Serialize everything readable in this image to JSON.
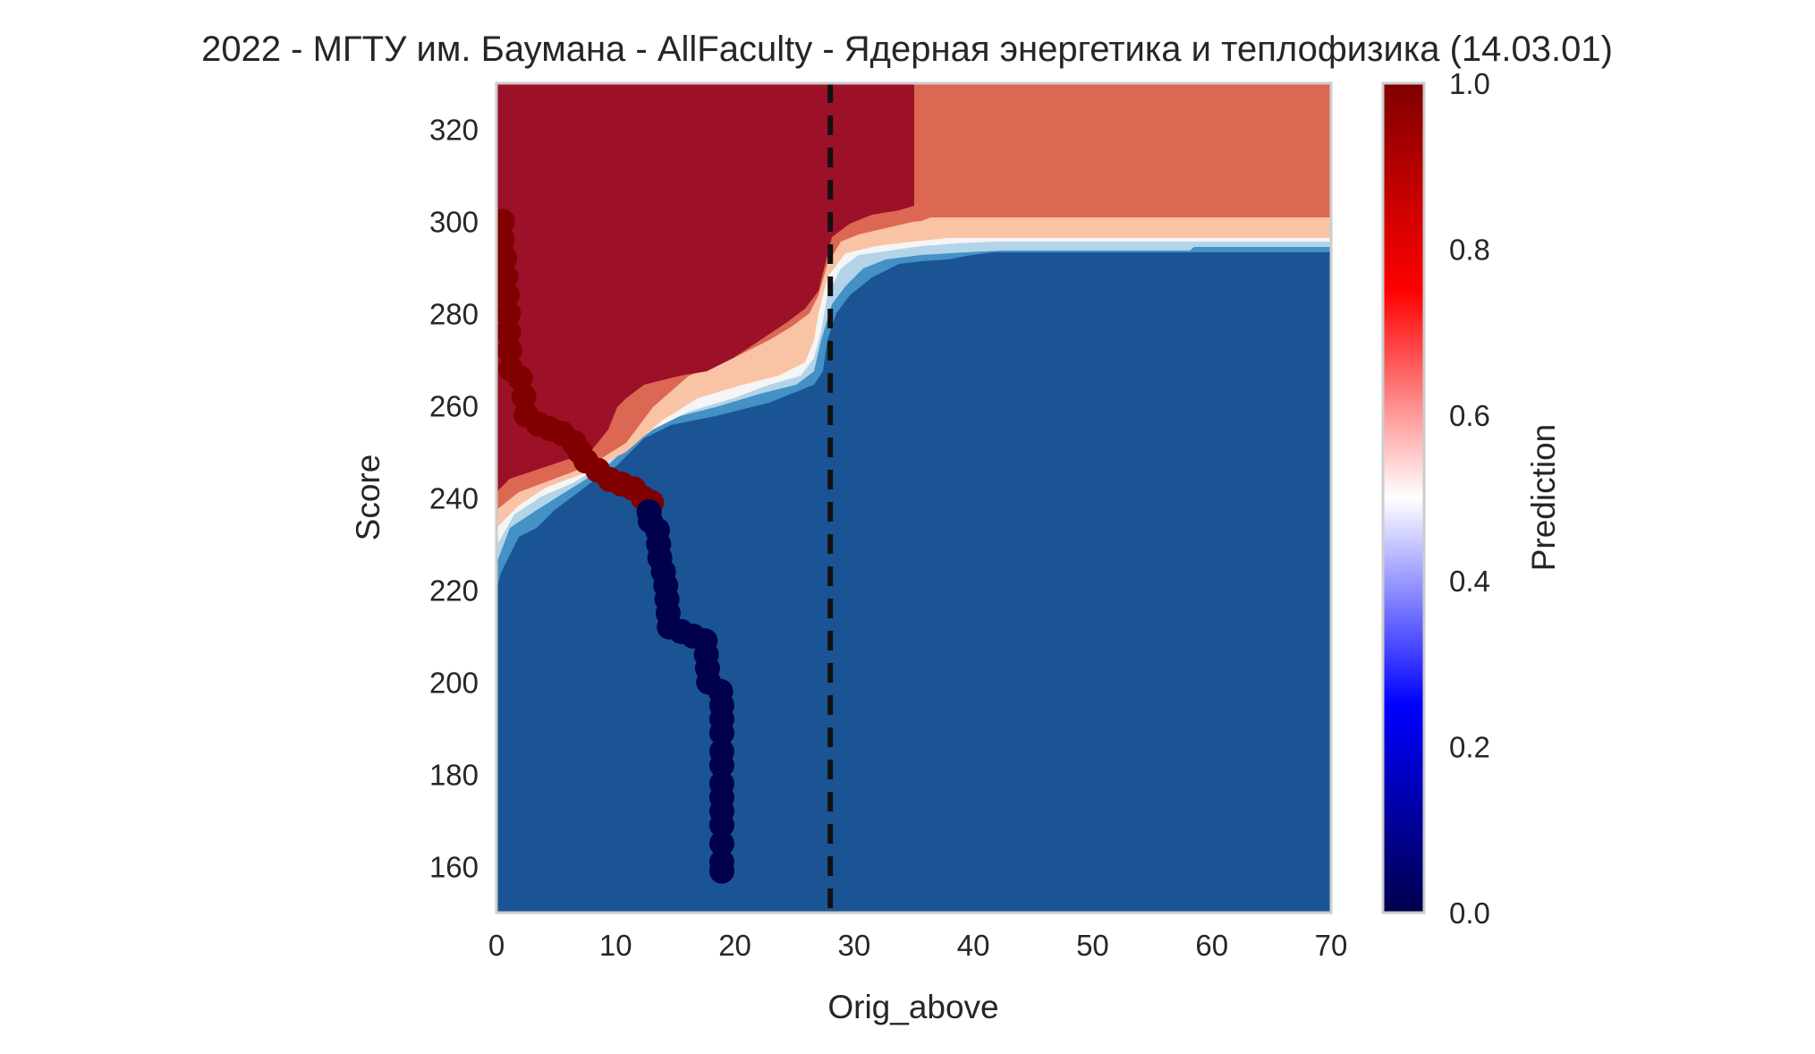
{
  "chart_data": {
    "type": "heatmap",
    "title": "2022 - МГТУ им. Баумана - AllFaculty - Ядерная энергетика и теплофизика (14.03.01)",
    "xlabel": "Orig_above",
    "ylabel": "Score",
    "xlim": [
      0,
      70
    ],
    "ylim": [
      150,
      330
    ],
    "x_ticks": [
      "0",
      "10",
      "20",
      "30",
      "40",
      "50",
      "60",
      "70"
    ],
    "y_ticks": [
      "160",
      "180",
      "200",
      "220",
      "240",
      "260",
      "280",
      "300",
      "320"
    ],
    "grid": false,
    "vline_x": 28,
    "colorbar": {
      "label": "Prediction",
      "range": [
        0,
        1
      ],
      "ticks": [
        "0.0",
        "0.2",
        "0.4",
        "0.6",
        "0.8",
        "1.0"
      ],
      "colormap": "seismic"
    },
    "contour_levels": {
      "colors": [
        "#1a5494",
        "#4391c5",
        "#b3d4e8",
        "#f5f5f5",
        "#f9c3a6",
        "#dc6853",
        "#9c1127"
      ]
    },
    "boundary_points": [
      {
        "x": 0.5,
        "score": 300,
        "prediction": 1
      },
      {
        "x": 0.5,
        "score": 296,
        "prediction": 1
      },
      {
        "x": 0.7,
        "score": 292,
        "prediction": 1
      },
      {
        "x": 0.8,
        "score": 288,
        "prediction": 1
      },
      {
        "x": 0.9,
        "score": 284,
        "prediction": 1
      },
      {
        "x": 1.0,
        "score": 280,
        "prediction": 1
      },
      {
        "x": 1.0,
        "score": 276,
        "prediction": 1
      },
      {
        "x": 1.1,
        "score": 272,
        "prediction": 1
      },
      {
        "x": 1.2,
        "score": 268,
        "prediction": 1
      },
      {
        "x": 2.0,
        "score": 266,
        "prediction": 1
      },
      {
        "x": 2.3,
        "score": 262,
        "prediction": 1
      },
      {
        "x": 2.5,
        "score": 258,
        "prediction": 1
      },
      {
        "x": 3.5,
        "score": 256,
        "prediction": 1
      },
      {
        "x": 4.5,
        "score": 255,
        "prediction": 1
      },
      {
        "x": 5.5,
        "score": 254,
        "prediction": 1
      },
      {
        "x": 6.5,
        "score": 252,
        "prediction": 1
      },
      {
        "x": 7.0,
        "score": 250,
        "prediction": 1
      },
      {
        "x": 7.5,
        "score": 248,
        "prediction": 1
      },
      {
        "x": 8.5,
        "score": 246,
        "prediction": 1
      },
      {
        "x": 9.5,
        "score": 244,
        "prediction": 1
      },
      {
        "x": 10.5,
        "score": 243,
        "prediction": 1
      },
      {
        "x": 11.5,
        "score": 242,
        "prediction": 1
      },
      {
        "x": 12.3,
        "score": 240,
        "prediction": 1
      },
      {
        "x": 13.0,
        "score": 239,
        "prediction": 1
      },
      {
        "x": 12.8,
        "score": 237,
        "prediction": 0
      },
      {
        "x": 12.9,
        "score": 235,
        "prediction": 0
      },
      {
        "x": 13.5,
        "score": 233,
        "prediction": 0
      },
      {
        "x": 13.6,
        "score": 230,
        "prediction": 0
      },
      {
        "x": 13.7,
        "score": 227,
        "prediction": 0
      },
      {
        "x": 14.0,
        "score": 224,
        "prediction": 0
      },
      {
        "x": 14.2,
        "score": 221,
        "prediction": 0
      },
      {
        "x": 14.3,
        "score": 218,
        "prediction": 0
      },
      {
        "x": 14.4,
        "score": 215,
        "prediction": 0
      },
      {
        "x": 14.5,
        "score": 212,
        "prediction": 0
      },
      {
        "x": 15.5,
        "score": 211,
        "prediction": 0
      },
      {
        "x": 16.5,
        "score": 210,
        "prediction": 0
      },
      {
        "x": 17.5,
        "score": 209,
        "prediction": 0
      },
      {
        "x": 17.6,
        "score": 206,
        "prediction": 0
      },
      {
        "x": 17.7,
        "score": 203,
        "prediction": 0
      },
      {
        "x": 17.8,
        "score": 200,
        "prediction": 0
      },
      {
        "x": 18.8,
        "score": 198,
        "prediction": 0
      },
      {
        "x": 18.9,
        "score": 195,
        "prediction": 0
      },
      {
        "x": 18.9,
        "score": 192,
        "prediction": 0
      },
      {
        "x": 18.9,
        "score": 189,
        "prediction": 0
      },
      {
        "x": 18.9,
        "score": 185,
        "prediction": 0
      },
      {
        "x": 18.9,
        "score": 182,
        "prediction": 0
      },
      {
        "x": 18.9,
        "score": 178,
        "prediction": 0
      },
      {
        "x": 18.9,
        "score": 175,
        "prediction": 0
      },
      {
        "x": 18.9,
        "score": 172,
        "prediction": 0
      },
      {
        "x": 18.9,
        "score": 169,
        "prediction": 0
      },
      {
        "x": 18.9,
        "score": 165,
        "prediction": 0
      },
      {
        "x": 18.9,
        "score": 161,
        "prediction": 0
      },
      {
        "x": 18.9,
        "score": 159,
        "prediction": 0
      }
    ]
  }
}
